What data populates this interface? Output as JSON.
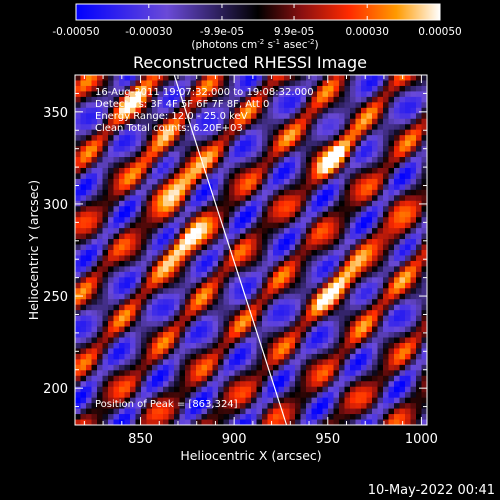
{
  "chart_data": {
    "type": "heatmap",
    "title": "Reconstructed RHESSI Image",
    "xlabel": "Heliocentric X (arcsec)",
    "ylabel": "Heliocentric Y (arcsec)",
    "xlim": [
      815,
      1003
    ],
    "ylim": [
      180,
      370
    ],
    "xticks": [
      "850",
      "900",
      "950",
      "1000"
    ],
    "yticks": [
      "200",
      "250",
      "300",
      "350"
    ],
    "xtick_values": [
      850,
      900,
      950,
      1000
    ],
    "ytick_values": [
      200,
      250,
      300,
      350
    ],
    "colorbar": {
      "ticks": [
        "-0.00050",
        "-0.00030",
        "-9.9e-05",
        "9.9e-05",
        "0.00030",
        "0.00050"
      ],
      "tick_values": [
        -0.0005,
        -0.0003,
        -9.9e-05,
        9.9e-05,
        0.0003,
        0.0005
      ],
      "range": [
        -0.0005,
        0.0005
      ],
      "unit_main": "(photons cm",
      "unit_exp1": "-2",
      "unit_mid": " s",
      "unit_exp2": "-1",
      "unit_mid2": " asec",
      "unit_exp3": "-2",
      "unit_end": ")"
    },
    "annotations": [
      "16-Aug-2011 19:07:32.000 to 19:08:32.000",
      "Detectors: 3F 4F 5F 6F 7F 8F, Att 0",
      "Energy Range: 12.0 - 25.0 keV",
      "Clean     Total counts: 6.20E+03",
      "Position of Peak = [863,324]"
    ],
    "peak": [
      863,
      324
    ],
    "limb_line": [
      [
        868,
        370
      ],
      [
        928,
        180
      ]
    ]
  },
  "footer": {
    "timestamp": "10-May-2022 00:41"
  }
}
